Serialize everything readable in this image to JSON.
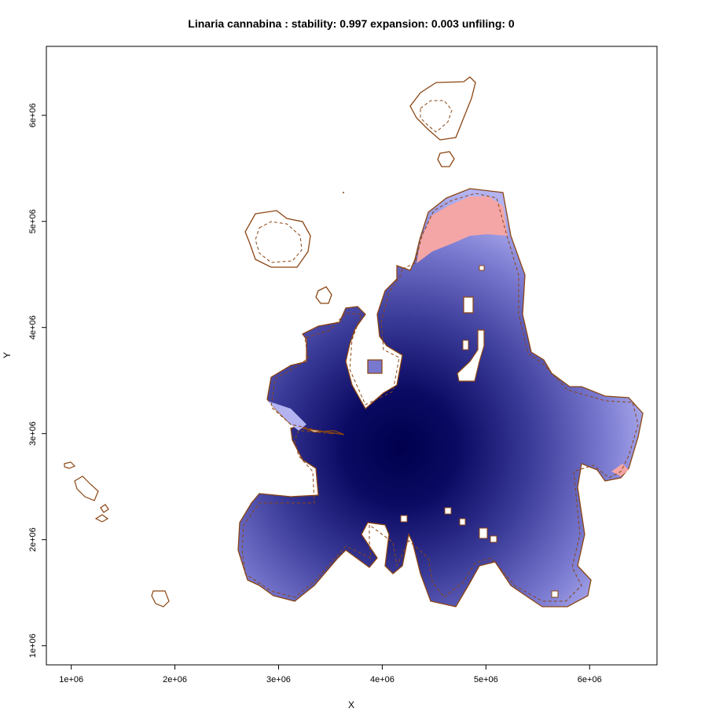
{
  "chart_data": {
    "type": "heatmap",
    "title": "Linaria cannabina : stability: 0.997 expansion: 0.003 unfiling: 0",
    "xlabel": "X",
    "ylabel": "Y",
    "xlim": [
      760000,
      6650000
    ],
    "ylim": [
      820000,
      6650000
    ],
    "x_ticks": [
      {
        "value": 1000000,
        "label": "1e+06"
      },
      {
        "value": 2000000,
        "label": "2e+06"
      },
      {
        "value": 3000000,
        "label": "3e+06"
      },
      {
        "value": 4000000,
        "label": "4e+06"
      },
      {
        "value": 5000000,
        "label": "5e+06"
      },
      {
        "value": 6000000,
        "label": "6e+06"
      }
    ],
    "y_ticks": [
      {
        "value": 1000000,
        "label": "1e+06"
      },
      {
        "value": 2000000,
        "label": "2e+06"
      },
      {
        "value": 3000000,
        "label": "3e+06"
      },
      {
        "value": 4000000,
        "label": "4e+06"
      },
      {
        "value": 5000000,
        "label": "5e+06"
      },
      {
        "value": 6000000,
        "label": "6e+06"
      }
    ],
    "stability": 0.997,
    "expansion": 0.003,
    "unfiling": 0,
    "colors": {
      "density_high": "#00004d",
      "density_low": "#b3b3f2",
      "expansion": "#f4a6a6",
      "contour": "#8b4513"
    },
    "grid": false,
    "legend": "none"
  }
}
